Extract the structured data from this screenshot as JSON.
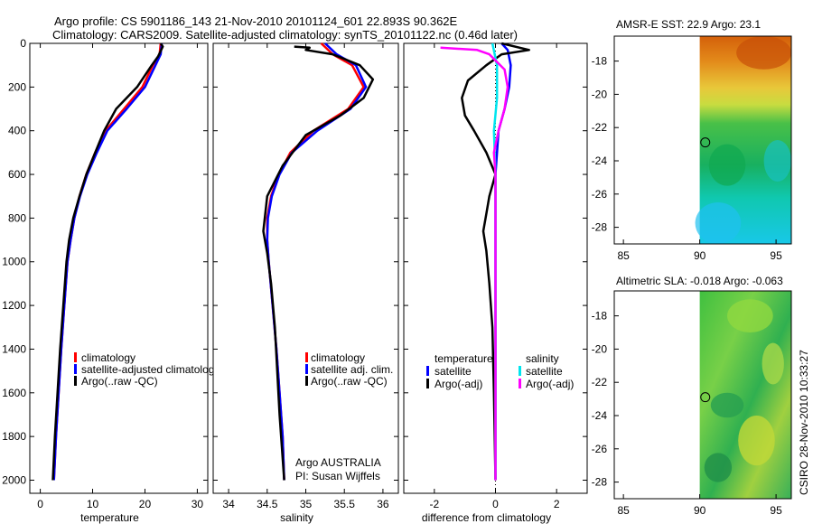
{
  "header": {
    "line1": "Argo profile: CS 5901186_143 21-Nov-2010 20101124_601 22.893S 90.362E",
    "line2": "Climatology: CARS2009. Satellite-adjusted climatology: synTS_20101122.nc (0.46d later)"
  },
  "side_label": "CSIRO 28-Nov-2010 10:33:27",
  "colors": {
    "red": "#ff0000",
    "blue": "#0000ff",
    "black": "#000000",
    "cyan": "#00e5ee",
    "magenta": "#ff00ff"
  },
  "chart_data": [
    {
      "id": "temperature",
      "type": "line",
      "xlabel": "temperature",
      "xlim": [
        -2,
        32
      ],
      "ylim": [
        0,
        2060
      ],
      "xticks": [
        "0",
        "10",
        "20",
        "30"
      ],
      "xtick_values": [
        0,
        10,
        20,
        30
      ],
      "yticks": [
        "0",
        "200",
        "400",
        "600",
        "800",
        "1000",
        "1200",
        "1400",
        "1600",
        "1800",
        "2000"
      ],
      "ytick_values": [
        0,
        200,
        400,
        600,
        800,
        1000,
        1200,
        1400,
        1600,
        1800,
        2000
      ],
      "legend": [
        "climatology",
        "satellite-adjusted climatology",
        "Argo(..raw -QC)"
      ],
      "series": [
        {
          "name": "climatology",
          "color": "#ff0000",
          "points": [
            [
              23,
              0
            ],
            [
              22.8,
              50
            ],
            [
              21.5,
              100
            ],
            [
              19.5,
              200
            ],
            [
              16,
              300
            ],
            [
              12.5,
              400
            ],
            [
              10.5,
              500
            ],
            [
              8.8,
              600
            ],
            [
              7.5,
              700
            ],
            [
              6.5,
              800
            ],
            [
              5.8,
              900
            ],
            [
              5.2,
              1000
            ],
            [
              4.6,
              1200
            ],
            [
              4,
              1400
            ],
            [
              3.5,
              1600
            ],
            [
              3,
              1800
            ],
            [
              2.6,
              2000
            ]
          ]
        },
        {
          "name": "satellite-adjusted climatology",
          "color": "#0000ff",
          "points": [
            [
              23.2,
              0
            ],
            [
              23,
              50
            ],
            [
              22,
              100
            ],
            [
              20,
              200
            ],
            [
              16.5,
              300
            ],
            [
              12.8,
              400
            ],
            [
              10.8,
              500
            ],
            [
              9,
              600
            ],
            [
              7.6,
              700
            ],
            [
              6.5,
              800
            ],
            [
              5.8,
              900
            ],
            [
              5.2,
              1000
            ],
            [
              4.6,
              1200
            ],
            [
              4,
              1400
            ],
            [
              3.5,
              1600
            ],
            [
              3,
              1800
            ],
            [
              2.6,
              2000
            ]
          ]
        },
        {
          "name": "Argo(..raw -QC)",
          "color": "#000000",
          "points": [
            [
              23,
              0
            ],
            [
              23.4,
              15
            ],
            [
              23.1,
              30
            ],
            [
              22.5,
              60
            ],
            [
              21.3,
              100
            ],
            [
              18.5,
              200
            ],
            [
              14.5,
              300
            ],
            [
              12.2,
              400
            ],
            [
              10.5,
              500
            ],
            [
              8.8,
              600
            ],
            [
              7.5,
              700
            ],
            [
              6.3,
              800
            ],
            [
              5.5,
              900
            ],
            [
              5,
              1000
            ],
            [
              4.4,
              1200
            ],
            [
              3.8,
              1400
            ],
            [
              3.3,
              1600
            ],
            [
              2.8,
              1800
            ],
            [
              2.4,
              2000
            ]
          ]
        }
      ]
    },
    {
      "id": "salinity",
      "type": "line",
      "xlabel": "salinity",
      "xlim": [
        33.8,
        36.2
      ],
      "ylim": [
        0,
        2060
      ],
      "xticks": [
        "34",
        "34.5",
        "35",
        "35.5",
        "36"
      ],
      "xtick_values": [
        34,
        34.5,
        35,
        35.5,
        36
      ],
      "legend": [
        "climatology",
        "satellite adj. clim.",
        "Argo(..raw -QC)"
      ],
      "annotation": [
        "Argo AUSTRALIA",
        "PI: Susan Wijffels"
      ],
      "series": [
        {
          "name": "climatology",
          "color": "#ff0000",
          "points": [
            [
              35.2,
              0
            ],
            [
              35.35,
              50
            ],
            [
              35.6,
              100
            ],
            [
              35.75,
              200
            ],
            [
              35.55,
              300
            ],
            [
              35.1,
              400
            ],
            [
              34.8,
              500
            ],
            [
              34.65,
              600
            ],
            [
              34.55,
              700
            ],
            [
              34.5,
              800
            ],
            [
              34.5,
              900
            ],
            [
              34.52,
              1000
            ],
            [
              34.57,
              1200
            ],
            [
              34.62,
              1400
            ],
            [
              34.66,
              1600
            ],
            [
              34.7,
              1800
            ],
            [
              34.72,
              2000
            ]
          ]
        },
        {
          "name": "satellite adj. clim.",
          "color": "#0000ff",
          "points": [
            [
              35.25,
              0
            ],
            [
              35.4,
              50
            ],
            [
              35.65,
              100
            ],
            [
              35.78,
              200
            ],
            [
              35.58,
              300
            ],
            [
              35.15,
              400
            ],
            [
              34.82,
              500
            ],
            [
              34.66,
              600
            ],
            [
              34.56,
              700
            ],
            [
              34.51,
              800
            ],
            [
              34.5,
              900
            ],
            [
              34.52,
              1000
            ],
            [
              34.57,
              1200
            ],
            [
              34.62,
              1400
            ],
            [
              34.66,
              1600
            ],
            [
              34.7,
              1800
            ],
            [
              34.72,
              2000
            ]
          ]
        },
        {
          "name": "Argo(..raw -QC)",
          "color": "#000000",
          "points": [
            [
              34.85,
              15
            ],
            [
              35.05,
              20
            ],
            [
              35.0,
              30
            ],
            [
              35.35,
              50
            ],
            [
              35.7,
              100
            ],
            [
              35.87,
              165
            ],
            [
              35.75,
              250
            ],
            [
              35.45,
              330
            ],
            [
              35.0,
              420
            ],
            [
              34.7,
              560
            ],
            [
              34.5,
              700
            ],
            [
              34.45,
              860
            ],
            [
              34.5,
              960
            ],
            [
              34.55,
              1100
            ],
            [
              34.6,
              1300
            ],
            [
              34.63,
              1500
            ],
            [
              34.66,
              1700
            ],
            [
              34.7,
              1900
            ],
            [
              34.72,
              2000
            ]
          ]
        }
      ]
    },
    {
      "id": "difference",
      "type": "line",
      "xlabel": "difference from climatology",
      "xlim": [
        -3,
        3
      ],
      "ylim": [
        0,
        2060
      ],
      "xticks": [
        "-2",
        "0",
        "2"
      ],
      "xtick_values": [
        -2,
        0,
        2
      ],
      "legend_left": {
        "title": "temperature",
        "items": [
          "satellite",
          "Argo(-adj)"
        ]
      },
      "legend_right": {
        "title": "salinity",
        "items": [
          "satellite",
          "Argo(-adj)"
        ]
      },
      "series": [
        {
          "name": "temperature satellite",
          "color": "#0000ff",
          "points": [
            [
              0.2,
              0
            ],
            [
              0.4,
              30
            ],
            [
              0.5,
              100
            ],
            [
              0.45,
              200
            ],
            [
              0.3,
              300
            ],
            [
              0.1,
              400
            ],
            [
              0,
              600
            ],
            [
              0,
              800
            ],
            [
              0,
              2000
            ]
          ]
        },
        {
          "name": "temperature Argo(-adj)",
          "color": "#000000",
          "points": [
            [
              0.2,
              0
            ],
            [
              1.1,
              30
            ],
            [
              0.2,
              50
            ],
            [
              -0.3,
              100
            ],
            [
              -0.9,
              170
            ],
            [
              -1.1,
              250
            ],
            [
              -1.0,
              330
            ],
            [
              -0.7,
              400
            ],
            [
              -0.3,
              500
            ],
            [
              0,
              600
            ],
            [
              -0.2,
              700
            ],
            [
              -0.3,
              780
            ],
            [
              -0.4,
              860
            ],
            [
              -0.3,
              950
            ],
            [
              -0.2,
              1100
            ],
            [
              -0.1,
              1300
            ],
            [
              -0.05,
              1600
            ],
            [
              0,
              2000
            ]
          ]
        },
        {
          "name": "salinity satellite",
          "color": "#00e5ee",
          "points": [
            [
              -0.1,
              0
            ],
            [
              0.05,
              100
            ],
            [
              0.05,
              250
            ],
            [
              -0.05,
              400
            ],
            [
              0,
              600
            ],
            [
              0,
              1000
            ],
            [
              0,
              2000
            ]
          ]
        },
        {
          "name": "salinity Argo(-adj)",
          "color": "#ff00ff",
          "points": [
            [
              -1.8,
              20
            ],
            [
              -0.6,
              30
            ],
            [
              -0.2,
              50
            ],
            [
              0.3,
              120
            ],
            [
              0.4,
              200
            ],
            [
              0.3,
              300
            ],
            [
              0.1,
              400
            ],
            [
              -0.05,
              500
            ],
            [
              0,
              600
            ],
            [
              0,
              900
            ],
            [
              0,
              2000
            ]
          ]
        }
      ]
    },
    {
      "id": "sst_map",
      "type": "heatmap",
      "title": "AMSR-E SST: 22.9 Argo: 23.1",
      "xticks": [
        "85",
        "90",
        "95"
      ],
      "xtick_values": [
        85,
        90,
        95
      ],
      "yticks": [
        "-18",
        "-20",
        "-22",
        "-24",
        "-26",
        "-28"
      ],
      "ytick_values": [
        -18,
        -20,
        -22,
        -24,
        -26,
        -28
      ],
      "xlim": [
        84.4,
        96
      ],
      "ylim": [
        -29,
        -16.5
      ],
      "data_region": [
        90,
        96,
        -29,
        -16.5
      ],
      "marker": [
        90.362,
        -22.893
      ]
    },
    {
      "id": "sla_map",
      "type": "heatmap",
      "title": "Altimetric SLA: -0.018 Argo: -0.063",
      "xticks": [
        "85",
        "90",
        "95"
      ],
      "xtick_values": [
        85,
        90,
        95
      ],
      "yticks": [
        "-18",
        "-20",
        "-22",
        "-24",
        "-26",
        "-28"
      ],
      "ytick_values": [
        -18,
        -20,
        -22,
        -24,
        -26,
        -28
      ],
      "xlim": [
        84.4,
        96
      ],
      "ylim": [
        -29,
        -16.5
      ],
      "data_region": [
        90,
        96,
        -29,
        -16.5
      ],
      "marker": [
        90.362,
        -22.893
      ]
    }
  ]
}
